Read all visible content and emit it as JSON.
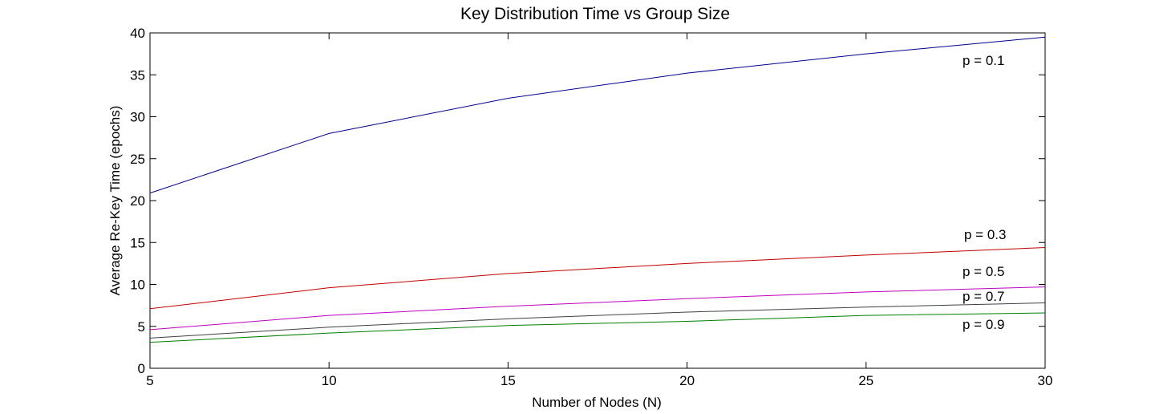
{
  "chart_data": {
    "type": "line",
    "title": "Key Distribution Time vs Group Size",
    "xlabel": "Number of Nodes (N)",
    "ylabel": "Average Re-Key Time (epochs)",
    "xlim": [
      5,
      30
    ],
    "ylim": [
      0,
      40
    ],
    "xticks": [
      5,
      10,
      15,
      20,
      25,
      30
    ],
    "yticks": [
      0,
      5,
      10,
      15,
      20,
      25,
      30,
      35,
      40
    ],
    "grid": false,
    "x": [
      5,
      10,
      15,
      20,
      25,
      30
    ],
    "series": [
      {
        "name": "p = 0.1",
        "color": "#00008f",
        "values": [
          20.9,
          28.0,
          32.2,
          35.2,
          37.5,
          39.5
        ]
      },
      {
        "name": "p = 0.3",
        "color": "#c00000",
        "values": [
          7.1,
          9.6,
          11.3,
          12.5,
          13.5,
          14.4
        ]
      },
      {
        "name": "p = 0.5",
        "color": "#bf00bf",
        "values": [
          4.6,
          6.3,
          7.4,
          8.3,
          9.1,
          9.7
        ]
      },
      {
        "name": "p = 0.7",
        "color": "#404040",
        "values": [
          3.6,
          4.9,
          5.9,
          6.7,
          7.3,
          7.8
        ]
      },
      {
        "name": "p = 0.9",
        "color": "#008000",
        "values": [
          3.1,
          4.2,
          5.1,
          5.6,
          6.3,
          6.6
        ]
      }
    ]
  }
}
